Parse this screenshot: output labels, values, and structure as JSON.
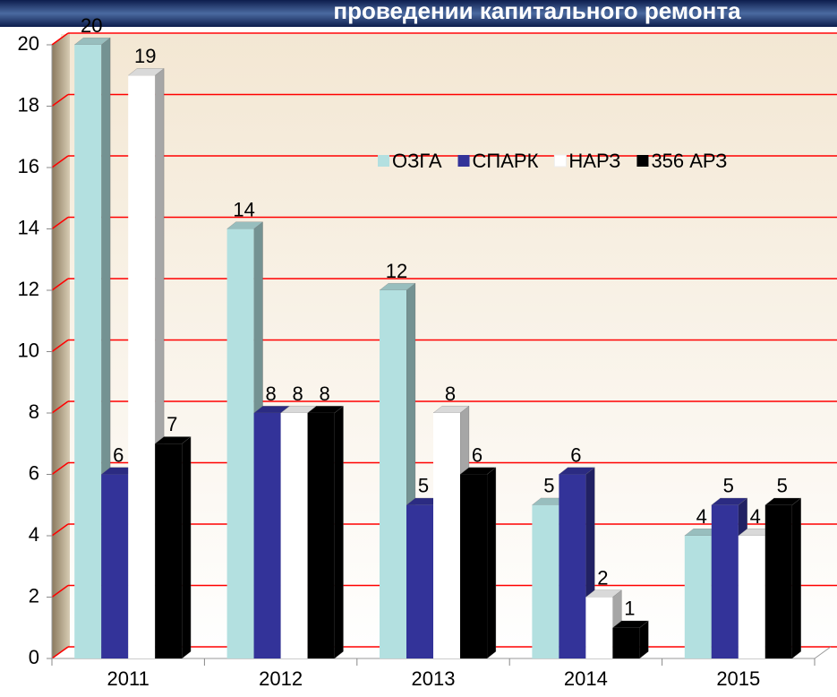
{
  "chart_data": {
    "type": "bar3d",
    "title": "проведении капитального ремонта",
    "categories": [
      "2011",
      "2012",
      "2013",
      "2014",
      "2015"
    ],
    "series": [
      {
        "name": "ОЗГА",
        "color": "#b3e0e0",
        "values": [
          20,
          14,
          12,
          5,
          4
        ]
      },
      {
        "name": "СПАРК",
        "color": "#333399",
        "values": [
          6,
          8,
          5,
          6,
          5
        ]
      },
      {
        "name": "НАРЗ",
        "color": "#ffffff",
        "values": [
          19,
          8,
          8,
          2,
          4
        ]
      },
      {
        "name": "356 АРЗ",
        "color": "#000000",
        "values": [
          7,
          8,
          6,
          1,
          5
        ]
      }
    ],
    "ylim": [
      0,
      20
    ],
    "yticks": [
      0,
      2,
      4,
      6,
      8,
      10,
      12,
      14,
      16,
      18,
      20
    ],
    "grid": true,
    "grid_color": "#ff0000",
    "legend": "upper right"
  }
}
